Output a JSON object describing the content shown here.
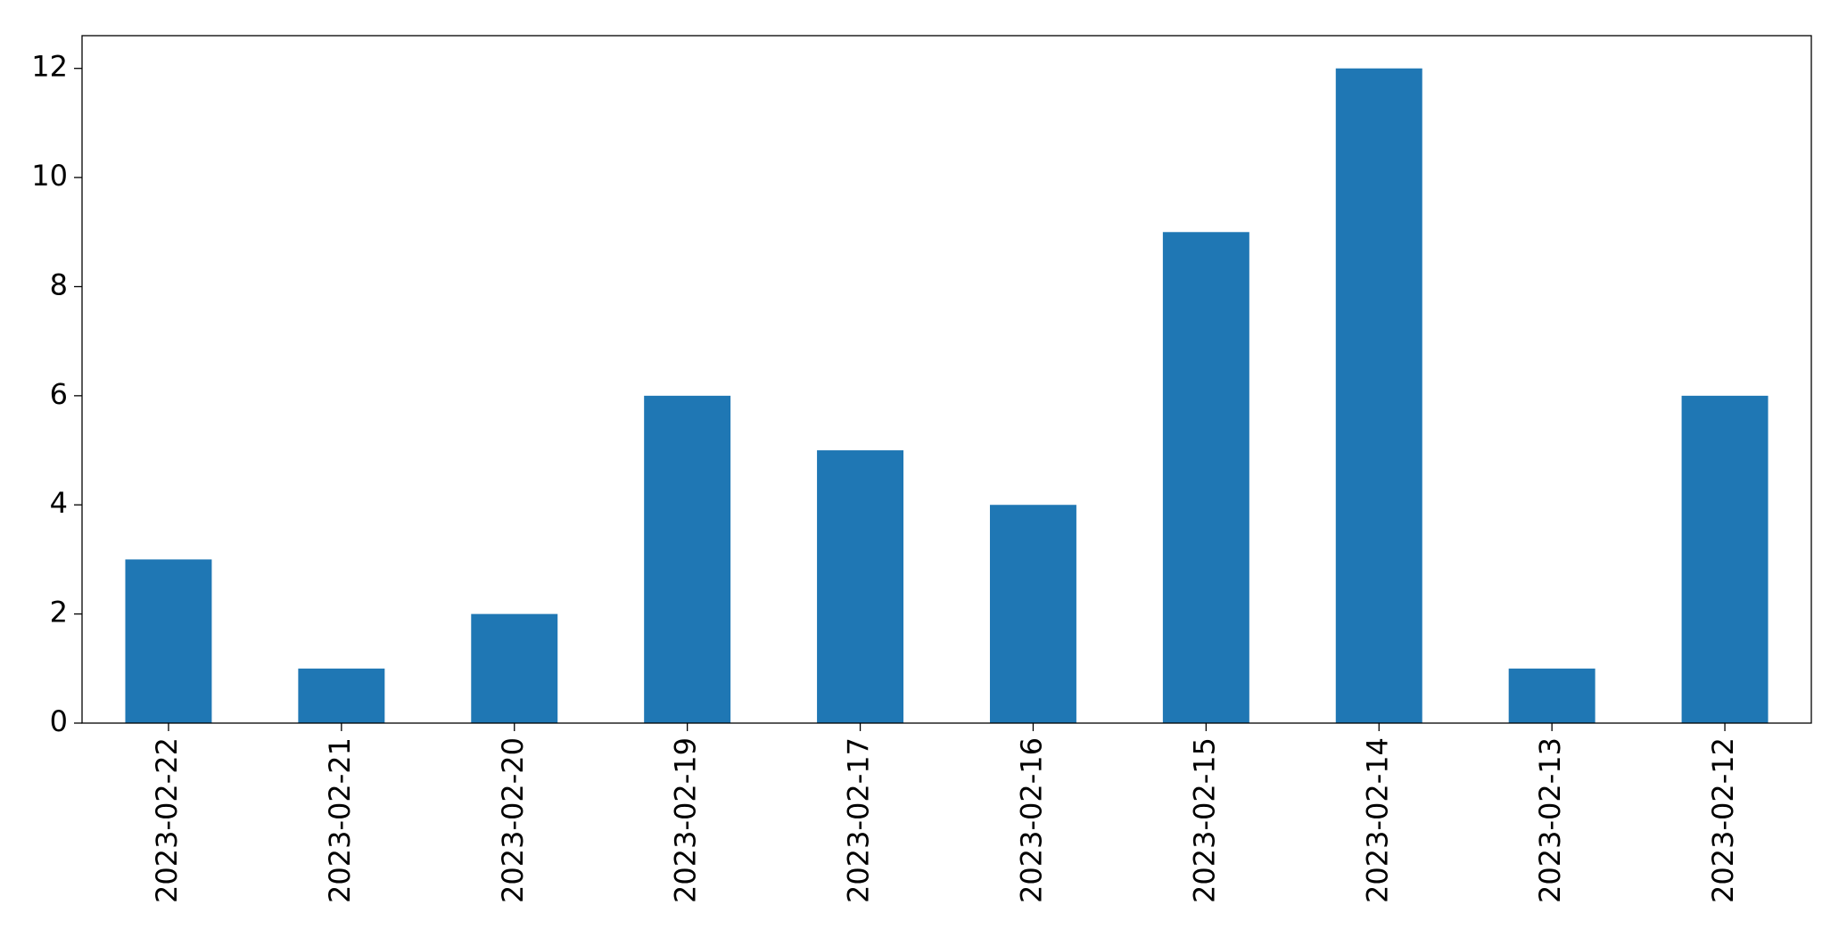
{
  "chart_data": {
    "type": "bar",
    "categories": [
      "2023-02-22",
      "2023-02-21",
      "2023-02-20",
      "2023-02-19",
      "2023-02-17",
      "2023-02-16",
      "2023-02-15",
      "2023-02-14",
      "2023-02-13",
      "2023-02-12"
    ],
    "values": [
      3,
      1,
      2,
      6,
      5,
      4,
      9,
      12,
      1,
      6
    ],
    "color": "#1f77b4",
    "ylim": [
      0,
      12.6
    ],
    "yticks": [
      0,
      2,
      4,
      6,
      8,
      10,
      12
    ],
    "grid": false
  }
}
